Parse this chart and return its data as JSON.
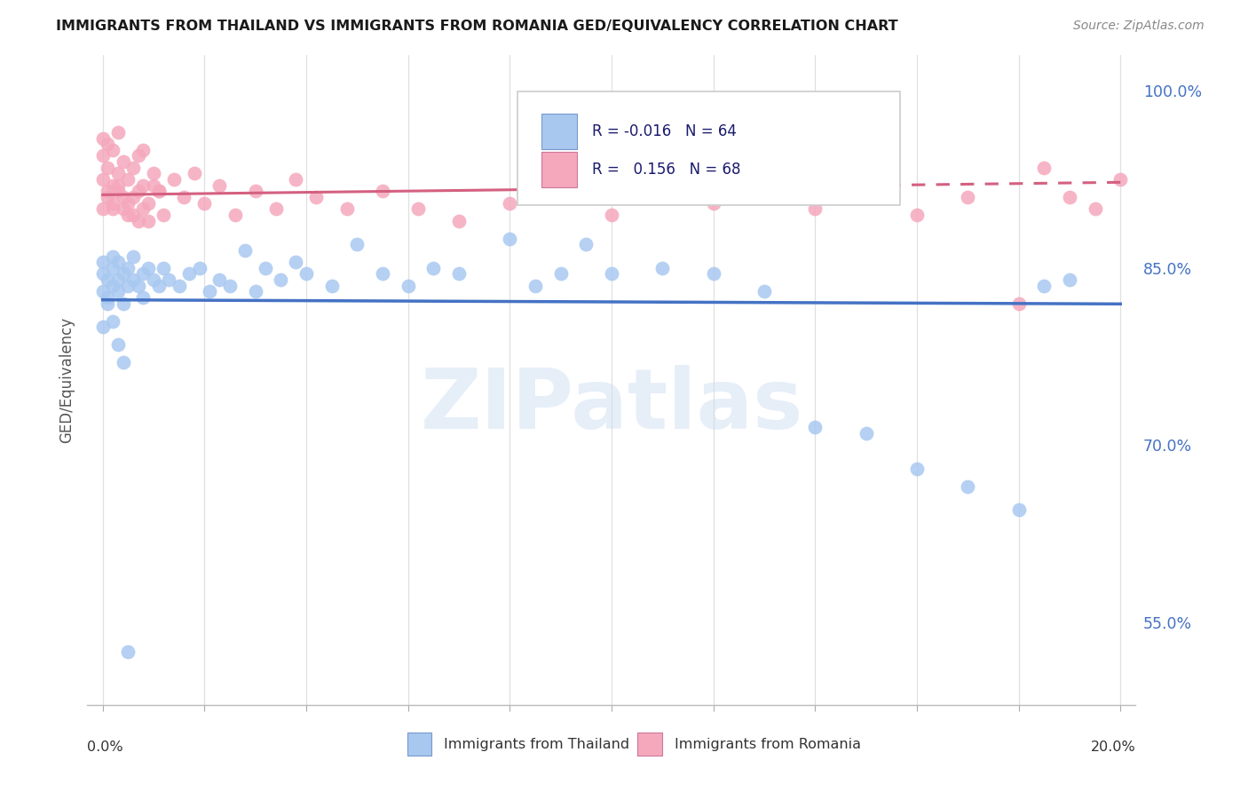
{
  "title": "IMMIGRANTS FROM THAILAND VS IMMIGRANTS FROM ROMANIA GED/EQUIVALENCY CORRELATION CHART",
  "source": "Source: ZipAtlas.com",
  "ylabel": "GED/Equivalency",
  "r_thailand": -0.016,
  "n_thailand": 64,
  "r_romania": 0.156,
  "n_romania": 68,
  "legend_label_thailand": "Immigrants from Thailand",
  "legend_label_romania": "Immigrants from Romania",
  "color_thailand": "#a8c8f0",
  "color_romania": "#f5a8bc",
  "trendline_color_thailand": "#4472c4",
  "trendline_color_romania": "#d46080",
  "background_color": "#ffffff",
  "grid_color": "#e0e0e0",
  "watermark": "ZIPatlas",
  "xmin": 0.0,
  "xmax": 20.0,
  "ymin": 48.0,
  "ymax": 103.0,
  "ytick_vals": [
    55.0,
    70.0,
    85.0,
    100.0
  ],
  "ytick_labels": [
    "55.0%",
    "70.0%",
    "85.0%",
    "100.0%"
  ],
  "th_x": [
    0.0,
    0.0,
    0.0,
    0.1,
    0.1,
    0.2,
    0.2,
    0.2,
    0.3,
    0.3,
    0.3,
    0.4,
    0.4,
    0.5,
    0.5,
    0.6,
    0.6,
    0.7,
    0.8,
    0.8,
    0.9,
    1.0,
    1.1,
    1.2,
    1.3,
    1.5,
    1.7,
    1.9,
    2.1,
    2.3,
    2.5,
    2.8,
    3.0,
    3.2,
    3.5,
    3.8,
    4.0,
    4.5,
    5.0,
    5.5,
    6.0,
    6.5,
    7.0,
    8.0,
    8.5,
    9.0,
    9.5,
    10.0,
    11.0,
    12.0,
    13.0,
    14.0,
    15.0,
    16.0,
    17.0,
    18.0,
    18.5,
    19.0,
    0.0,
    0.1,
    0.2,
    0.3,
    0.4,
    0.5
  ],
  "th_y": [
    84.5,
    83.0,
    85.5,
    84.0,
    82.5,
    85.0,
    83.5,
    86.0,
    84.0,
    85.5,
    83.0,
    84.5,
    82.0,
    85.0,
    83.5,
    84.0,
    86.0,
    83.5,
    84.5,
    82.5,
    85.0,
    84.0,
    83.5,
    85.0,
    84.0,
    83.5,
    84.5,
    85.0,
    83.0,
    84.0,
    83.5,
    86.5,
    83.0,
    85.0,
    84.0,
    85.5,
    84.5,
    83.5,
    87.0,
    84.5,
    83.5,
    85.0,
    84.5,
    87.5,
    83.5,
    84.5,
    87.0,
    84.5,
    85.0,
    84.5,
    83.0,
    71.5,
    71.0,
    68.0,
    66.5,
    64.5,
    83.5,
    84.0,
    80.0,
    82.0,
    80.5,
    78.5,
    77.0,
    52.5
  ],
  "ro_x": [
    0.0,
    0.0,
    0.0,
    0.0,
    0.1,
    0.1,
    0.1,
    0.2,
    0.2,
    0.2,
    0.3,
    0.3,
    0.3,
    0.4,
    0.4,
    0.5,
    0.5,
    0.6,
    0.6,
    0.7,
    0.7,
    0.8,
    0.8,
    0.9,
    1.0,
    1.1,
    1.2,
    1.4,
    1.6,
    1.8,
    2.0,
    2.3,
    2.6,
    3.0,
    3.4,
    3.8,
    4.2,
    4.8,
    5.5,
    6.2,
    7.0,
    8.0,
    9.0,
    10.0,
    11.0,
    12.0,
    13.0,
    14.0,
    15.0,
    15.5,
    16.0,
    17.0,
    18.0,
    18.5,
    19.0,
    19.5,
    20.0,
    0.1,
    0.2,
    0.3,
    0.4,
    0.5,
    0.6,
    0.7,
    0.8,
    0.9,
    1.0,
    1.1
  ],
  "ro_y": [
    90.0,
    92.5,
    94.5,
    96.0,
    91.0,
    93.5,
    95.5,
    90.5,
    92.0,
    95.0,
    91.5,
    93.0,
    96.5,
    90.0,
    94.0,
    92.5,
    89.5,
    93.5,
    91.0,
    94.5,
    89.0,
    92.0,
    95.0,
    90.5,
    93.0,
    91.5,
    89.5,
    92.5,
    91.0,
    93.0,
    90.5,
    92.0,
    89.5,
    91.5,
    90.0,
    92.5,
    91.0,
    90.0,
    91.5,
    90.0,
    89.0,
    90.5,
    91.0,
    89.5,
    92.0,
    90.5,
    91.5,
    90.0,
    91.5,
    92.0,
    89.5,
    91.0,
    82.0,
    93.5,
    91.0,
    90.0,
    92.5,
    91.5,
    90.0,
    92.0,
    91.0,
    90.5,
    89.5,
    91.5,
    90.0,
    89.0,
    92.0,
    91.5
  ]
}
